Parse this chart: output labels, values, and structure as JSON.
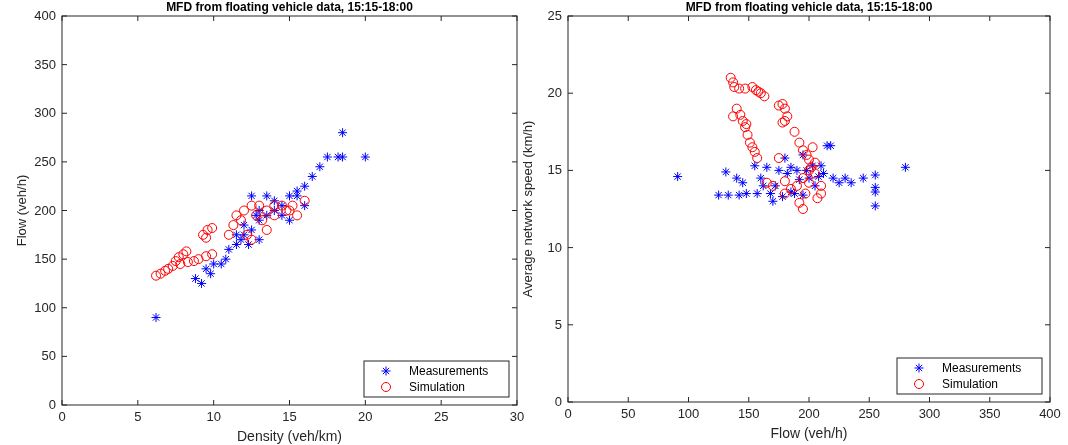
{
  "chart_data": [
    {
      "type": "scatter",
      "title": "MFD from floating vehicle data, 15:15-18:00",
      "xlabel": "Density (veh/km)",
      "ylabel": "Flow (veh/h)",
      "xlim": [
        0,
        30
      ],
      "xticks": [
        0,
        5,
        10,
        15,
        20,
        25,
        30
      ],
      "ylim": [
        0,
        400
      ],
      "yticks": [
        0,
        50,
        100,
        150,
        200,
        250,
        300,
        350,
        400
      ],
      "grid": false,
      "legend": "bottom right",
      "series": [
        {
          "name": "Measurements",
          "color": "#0000ff",
          "marker": "cross",
          "x": [
            6.2,
            8.8,
            9.2,
            9.5,
            10,
            10.5,
            11,
            11.5,
            12,
            12.5,
            13,
            13.5,
            14,
            14.5,
            15,
            15.5,
            16,
            16.5,
            17,
            17.5,
            18.5,
            18.5,
            18.2,
            20,
            12.5,
            13.5,
            14,
            12,
            13,
            11.5,
            10.8,
            9.8,
            14.5,
            15,
            13,
            12.3,
            11.8,
            15.5,
            16,
            12.8
          ],
          "values": [
            90,
            130,
            125,
            140,
            145,
            145,
            160,
            165,
            175,
            180,
            190,
            195,
            200,
            205,
            215,
            220,
            225,
            235,
            245,
            255,
            280,
            255,
            255,
            255,
            215,
            215,
            210,
            185,
            200,
            175,
            150,
            135,
            195,
            190,
            170,
            165,
            170,
            215,
            205,
            195
          ]
        },
        {
          "name": "Simulation",
          "color": "#ff0000",
          "marker": "circle",
          "x": [
            6.2,
            6.5,
            6.8,
            7,
            7.3,
            7.5,
            7.7,
            8,
            8.2,
            7.8,
            8.3,
            8.7,
            9,
            9.5,
            9.9,
            9.3,
            9.6,
            9.9,
            9.5,
            11,
            11.3,
            11.5,
            12,
            12.5,
            13,
            13.5,
            14,
            14.5,
            15,
            15.5,
            16,
            12.2,
            12.5,
            13.5,
            11.8,
            12.8,
            13.2,
            14,
            14.8,
            15.2
          ],
          "values": [
            133,
            135,
            138,
            140,
            143,
            148,
            152,
            155,
            158,
            145,
            147,
            148,
            150,
            153,
            155,
            175,
            180,
            182,
            172,
            175,
            185,
            195,
            200,
            205,
            205,
            200,
            205,
            205,
            200,
            195,
            210,
            175,
            170,
            180,
            190,
            195,
            190,
            195,
            200,
            205
          ]
        }
      ]
    },
    {
      "type": "scatter",
      "title": "MFD from floating vehicle data, 15:15-18:00",
      "xlabel": "Flow (veh/h)",
      "ylabel": "Average network speed (km/h)",
      "xlim": [
        0,
        400
      ],
      "xticks": [
        0,
        50,
        100,
        150,
        200,
        250,
        300,
        350,
        400
      ],
      "ylim": [
        0,
        25
      ],
      "yticks": [
        0,
        5,
        10,
        15,
        20,
        25
      ],
      "grid": false,
      "legend": "bottom right",
      "series": [
        {
          "name": "Measurements",
          "color": "#0000ff",
          "marker": "cross",
          "x": [
            91,
            125,
            131,
            133,
            140,
            142,
            145,
            148,
            155,
            157,
            160,
            162,
            165,
            168,
            170,
            172,
            175,
            178,
            180,
            182,
            185,
            188,
            190,
            192,
            195,
            198,
            200,
            203,
            205,
            208,
            210,
            212,
            215,
            218,
            220,
            225,
            230,
            235,
            245,
            255,
            255,
            255,
            255,
            280,
            195,
            185
          ],
          "values": [
            14.6,
            13.4,
            14.9,
            13.4,
            14.5,
            13.4,
            14.2,
            13.5,
            15.3,
            13.5,
            14.5,
            14,
            15.2,
            13.5,
            13,
            14,
            15,
            13.3,
            15.8,
            14.8,
            15.2,
            13.5,
            15,
            14.4,
            16,
            15,
            14.5,
            15.3,
            14,
            14.6,
            15.3,
            14.8,
            16.6,
            16.6,
            14.5,
            14.2,
            14.5,
            14.2,
            14.5,
            14.7,
            13.9,
            13.6,
            12.7,
            15.2,
            13.4,
            13.6
          ]
        },
        {
          "name": "Simulation",
          "color": "#ff0000",
          "marker": "circle",
          "x": [
            135,
            137,
            138,
            142,
            147,
            153,
            156,
            158,
            160,
            163,
            137,
            140,
            143,
            145,
            147,
            149,
            151,
            153,
            155,
            157,
            148,
            175,
            178,
            180,
            182,
            178,
            180,
            188,
            192,
            195,
            198,
            200,
            202,
            205,
            200,
            195,
            190,
            185,
            180,
            170,
            165,
            175,
            210,
            207,
            200,
            197,
            195,
            192,
            180,
            203,
            205,
            210
          ],
          "values": [
            21,
            20.7,
            20.4,
            20.3,
            20.3,
            20.4,
            20.2,
            20.1,
            20,
            19.8,
            18.5,
            19,
            18.6,
            18.2,
            17.8,
            17.3,
            16.8,
            16.5,
            16.2,
            15.8,
            18,
            19.2,
            19.3,
            19,
            18.5,
            18.1,
            18.2,
            17.5,
            16.8,
            16.3,
            16,
            15.7,
            15.2,
            14.8,
            15,
            14.5,
            14,
            13.8,
            14.3,
            14,
            14.2,
            15.8,
            13.5,
            13.2,
            14.2,
            13.5,
            12.5,
            12.9,
            13.5,
            16.5,
            15.5,
            14
          ]
        }
      ]
    }
  ]
}
